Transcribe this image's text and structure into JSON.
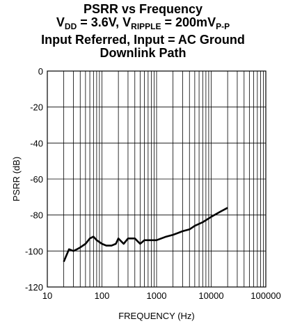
{
  "title": {
    "line1": "PSRR vs Frequency",
    "line2": {
      "vdd_prefix": "V",
      "vdd_sub": "DD",
      "vdd_value": " = 3.6V, ",
      "vrip_prefix": "V",
      "vrip_sub": "RIPPLE",
      "vrip_value": " = 200mV",
      "pp_sub": "P-P"
    },
    "line3": "Input Referred, Input = AC Ground",
    "line4": "Downlink Path"
  },
  "chart_data": {
    "type": "line",
    "xlabel": "FREQUENCY (Hz)",
    "ylabel": "PSRR (dB)",
    "xscale": "log",
    "xlim": [
      10,
      100000
    ],
    "ylim": [
      -120,
      0
    ],
    "xticks": [
      "10",
      "100",
      "1000",
      "10000",
      "100000"
    ],
    "yticks": [
      "0",
      "-20",
      "-40",
      "-60",
      "-80",
      "-100",
      "-120"
    ],
    "grid": true,
    "series": [
      {
        "color": "#000000",
        "x": [
          20,
          25,
          30,
          35,
          40,
          50,
          60,
          70,
          80,
          100,
          120,
          150,
          180,
          200,
          250,
          300,
          400,
          500,
          600,
          700,
          800,
          1000,
          1500,
          2000,
          3000,
          4000,
          5000,
          7000,
          10000,
          15000,
          20000
        ],
        "y": [
          -106,
          -99,
          -100,
          -99,
          -98,
          -96,
          -93,
          -92,
          -94,
          -96,
          -97,
          -97,
          -96,
          -93,
          -96,
          -93,
          -93,
          -96,
          -94,
          -94,
          -94,
          -94,
          -92,
          -91,
          -89,
          -88,
          -86,
          -84,
          -81,
          -78,
          -76
        ]
      }
    ]
  }
}
